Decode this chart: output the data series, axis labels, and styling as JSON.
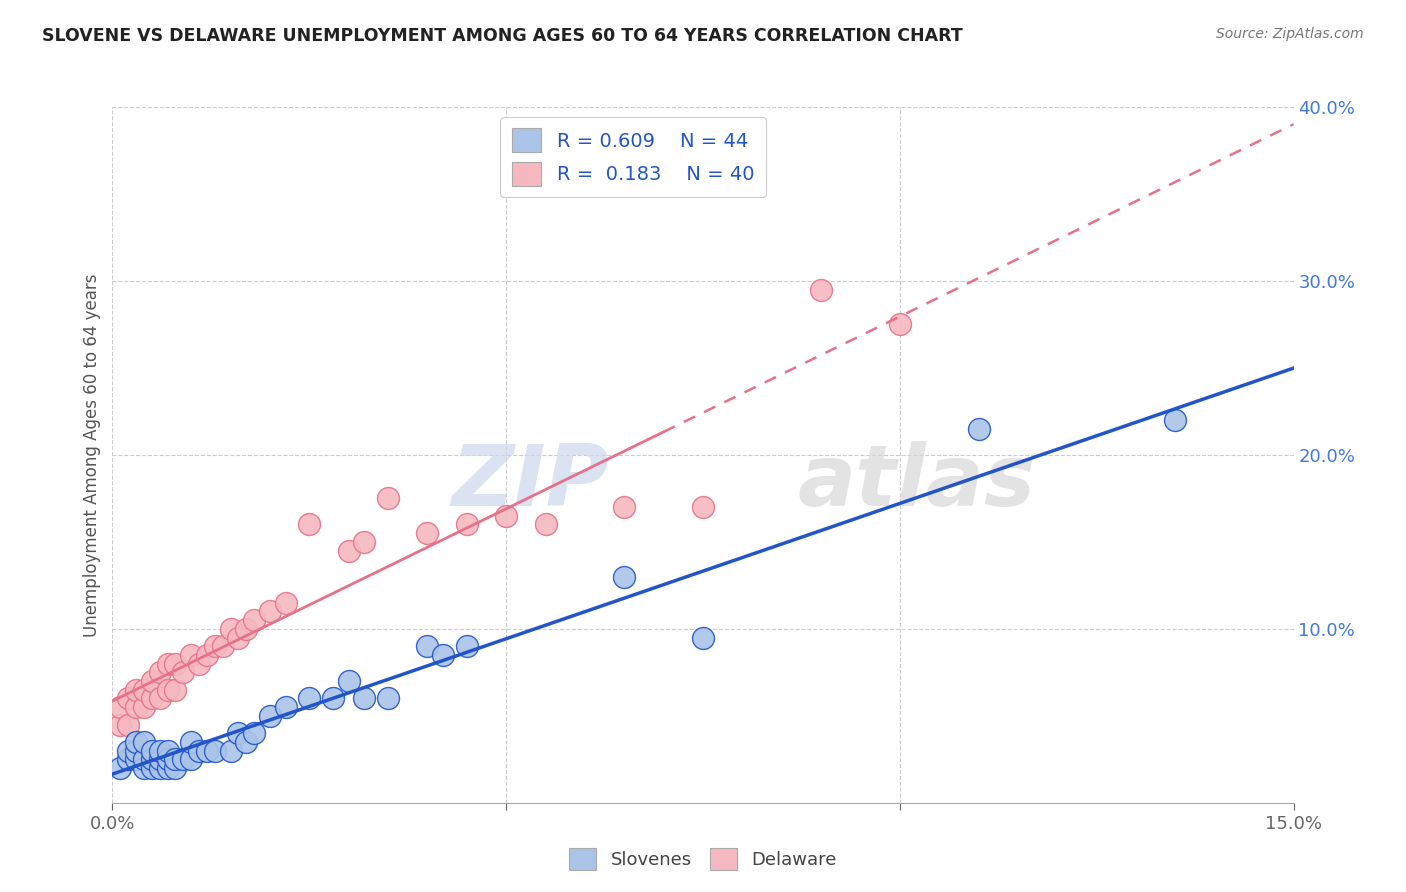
{
  "title": "SLOVENE VS DELAWARE UNEMPLOYMENT AMONG AGES 60 TO 64 YEARS CORRELATION CHART",
  "source": "Source: ZipAtlas.com",
  "ylabel": "Unemployment Among Ages 60 to 64 years",
  "xlim": [
    0,
    0.15
  ],
  "ylim": [
    0,
    0.4
  ],
  "yticks_right": [
    0.0,
    0.1,
    0.2,
    0.3,
    0.4
  ],
  "ytick_labels_right": [
    "",
    "10.0%",
    "20.0%",
    "30.0%",
    "40.0%"
  ],
  "blue_color": "#aac4e8",
  "pink_color": "#f5b8c0",
  "blue_line_color": "#2255cc",
  "pink_line_color": "#e8718a",
  "watermark_zip": "ZIP",
  "watermark_atlas": "atlas",
  "slovenes_x": [
    0.001,
    0.002,
    0.002,
    0.003,
    0.003,
    0.003,
    0.004,
    0.004,
    0.004,
    0.005,
    0.005,
    0.005,
    0.006,
    0.006,
    0.006,
    0.007,
    0.007,
    0.007,
    0.008,
    0.008,
    0.009,
    0.01,
    0.01,
    0.011,
    0.012,
    0.013,
    0.015,
    0.016,
    0.017,
    0.018,
    0.02,
    0.022,
    0.025,
    0.028,
    0.03,
    0.032,
    0.035,
    0.04,
    0.042,
    0.045,
    0.065,
    0.075,
    0.11,
    0.135
  ],
  "slovenes_y": [
    0.02,
    0.025,
    0.03,
    0.025,
    0.03,
    0.035,
    0.02,
    0.025,
    0.035,
    0.02,
    0.025,
    0.03,
    0.02,
    0.025,
    0.03,
    0.02,
    0.025,
    0.03,
    0.02,
    0.025,
    0.025,
    0.025,
    0.035,
    0.03,
    0.03,
    0.03,
    0.03,
    0.04,
    0.035,
    0.04,
    0.05,
    0.055,
    0.06,
    0.06,
    0.07,
    0.06,
    0.06,
    0.09,
    0.085,
    0.09,
    0.13,
    0.095,
    0.215,
    0.22
  ],
  "delaware_x": [
    0.001,
    0.001,
    0.002,
    0.002,
    0.003,
    0.003,
    0.004,
    0.004,
    0.005,
    0.005,
    0.006,
    0.006,
    0.007,
    0.007,
    0.008,
    0.008,
    0.009,
    0.01,
    0.011,
    0.012,
    0.013,
    0.014,
    0.015,
    0.016,
    0.017,
    0.018,
    0.02,
    0.022,
    0.025,
    0.03,
    0.032,
    0.035,
    0.04,
    0.045,
    0.05,
    0.055,
    0.065,
    0.075,
    0.09,
    0.1
  ],
  "delaware_y": [
    0.045,
    0.055,
    0.045,
    0.06,
    0.055,
    0.065,
    0.055,
    0.065,
    0.06,
    0.07,
    0.06,
    0.075,
    0.065,
    0.08,
    0.065,
    0.08,
    0.075,
    0.085,
    0.08,
    0.085,
    0.09,
    0.09,
    0.1,
    0.095,
    0.1,
    0.105,
    0.11,
    0.115,
    0.16,
    0.145,
    0.15,
    0.175,
    0.155,
    0.16,
    0.165,
    0.16,
    0.17,
    0.17,
    0.295,
    0.275
  ]
}
